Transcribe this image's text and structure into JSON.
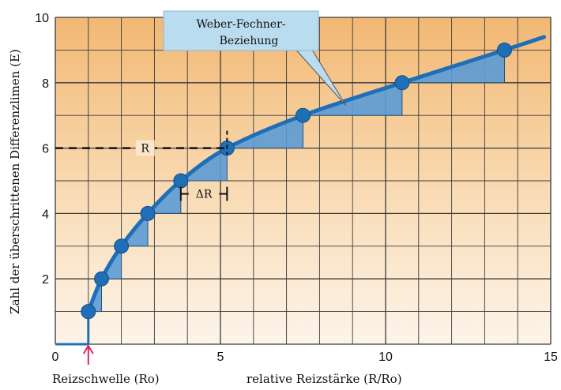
{
  "chart_data": {
    "type": "line",
    "title": "",
    "xlabel": "relative Reizstärke (R/Ro)",
    "ylabel": "Zahl der überschrittenen Differenzlimen (E)",
    "threshold_label": "Reizschwelle (Ro)",
    "xlim": [
      0,
      15
    ],
    "ylim": [
      0,
      10
    ],
    "x_ticks": [
      0,
      5,
      10,
      15
    ],
    "y_ticks": [
      2,
      4,
      6,
      8,
      10
    ],
    "grid": true,
    "x": [
      1,
      1.4,
      2,
      2.8,
      3.8,
      5.2,
      7.5,
      10.5,
      13.6
    ],
    "values": [
      1,
      2,
      3,
      4,
      5,
      6,
      7,
      8,
      9
    ],
    "curve_end": [
      14.8,
      9.4
    ],
    "annotation": {
      "line1": "Weber-Fechner-",
      "line2": "Beziehung"
    },
    "R_label": "R",
    "deltaR_label": "ΔR",
    "colors": {
      "curve": "#1f6fb8",
      "step_fill": "#5b9bd5",
      "background_top": "#f2b873",
      "background_bottom": "#fdf4ea",
      "grid": "#3a3a3a",
      "threshold_arrow": "#e0245e",
      "callout_fill": "#b9dcef"
    }
  }
}
